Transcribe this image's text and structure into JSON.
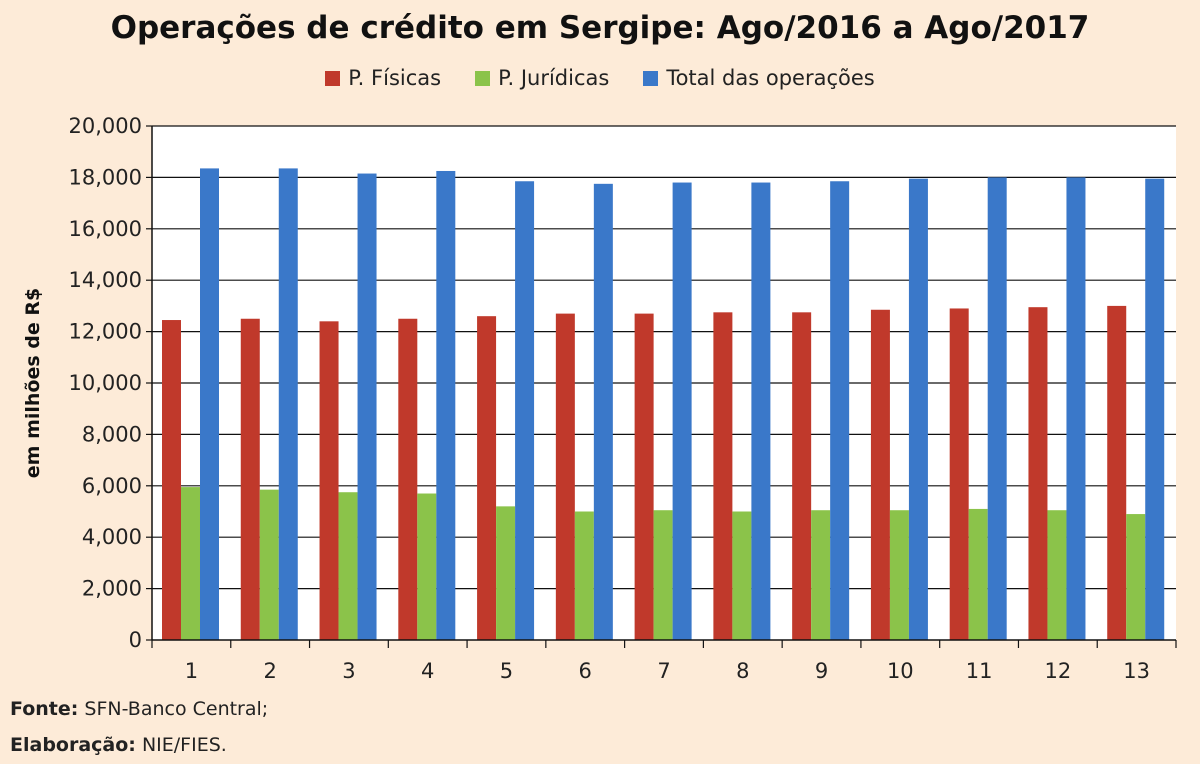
{
  "chart_data": {
    "type": "bar",
    "title": "Operações de crédito em Sergipe: Ago/2016 a Ago/2017",
    "ylabel": "em milhões de R$",
    "xlabel": "",
    "ylim": [
      0,
      20000
    ],
    "yticks": [
      "0",
      "2,000",
      "4,000",
      "6,000",
      "8,000",
      "10,000",
      "12,000",
      "14,000",
      "16,000",
      "18,000",
      "20,000"
    ],
    "categories": [
      "1",
      "2",
      "3",
      "4",
      "5",
      "6",
      "7",
      "8",
      "9",
      "10",
      "11",
      "12",
      "13"
    ],
    "series": [
      {
        "name": "P. Físicas",
        "color": "#c0392b",
        "values": [
          12450,
          12500,
          12400,
          12500,
          12600,
          12700,
          12700,
          12750,
          12750,
          12850,
          12900,
          12950,
          13000
        ]
      },
      {
        "name": "P. Jurídicas",
        "color": "#8bc34a",
        "values": [
          5950,
          5850,
          5750,
          5700,
          5200,
          5000,
          5050,
          5000,
          5050,
          5050,
          5100,
          5050,
          4900
        ]
      },
      {
        "name": "Total das operações",
        "color": "#3a78c9",
        "values": [
          18350,
          18350,
          18150,
          18250,
          17850,
          17750,
          17800,
          17800,
          17850,
          17950,
          18000,
          18000,
          17950
        ]
      }
    ],
    "grid": true,
    "legend_position": "top"
  },
  "source": {
    "line1_label": "Fonte:",
    "line1_value": " SFN-Banco Central;",
    "line2_label": "Elaboração:",
    "line2_value": " NIE/FIES."
  }
}
